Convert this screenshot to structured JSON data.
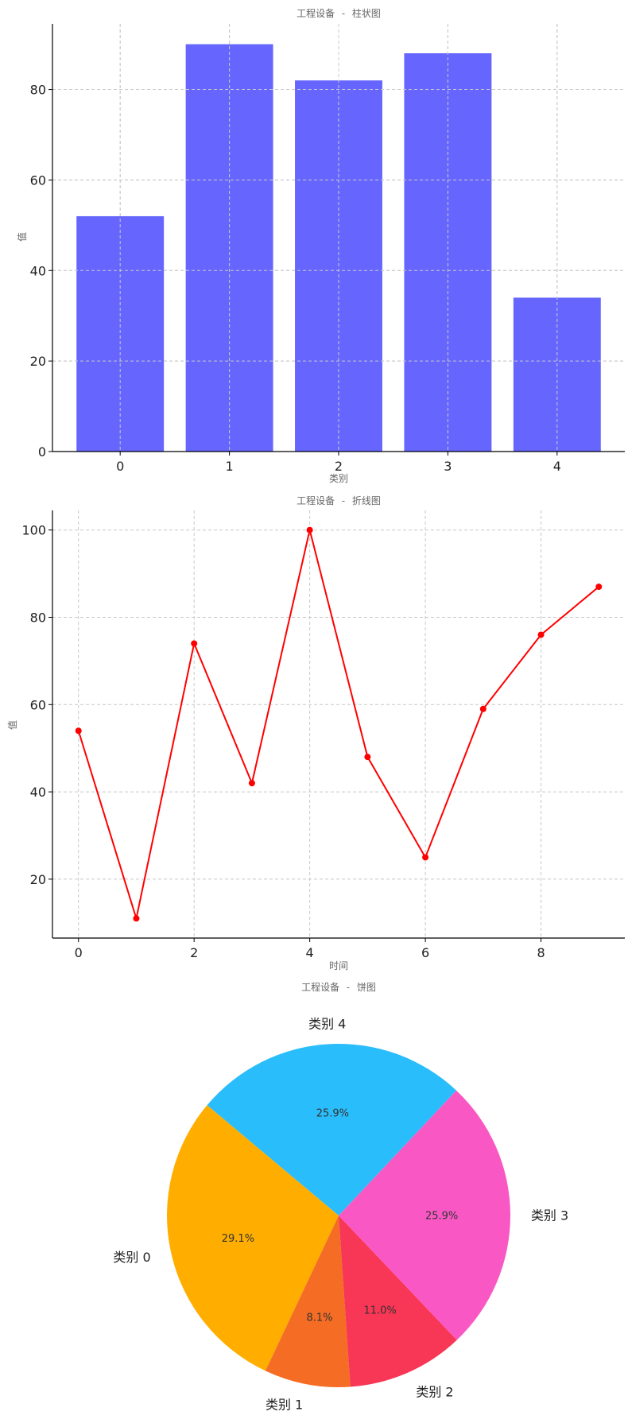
{
  "chart_data": [
    {
      "type": "bar",
      "title": "工程设备 - 柱状图",
      "xlabel": "类别",
      "ylabel": "值",
      "categories": [
        "0",
        "1",
        "2",
        "3",
        "4"
      ],
      "values": [
        52,
        90,
        82,
        88,
        34
      ],
      "ylim": [
        0,
        94.5
      ],
      "yticks": [
        "0",
        "20",
        "40",
        "60",
        "80"
      ],
      "grid": true,
      "color": "#6666ff"
    },
    {
      "type": "line",
      "title": "工程设备 - 折线图",
      "xlabel": "时间",
      "ylabel": "值",
      "x": [
        0,
        1,
        2,
        3,
        4,
        5,
        6,
        7,
        8,
        9
      ],
      "values": [
        54,
        11,
        74,
        42,
        100,
        48,
        25,
        59,
        76,
        87
      ],
      "xlim": [
        -0.45,
        9.45
      ],
      "ylim": [
        6.5,
        104.5
      ],
      "xticks": [
        "0",
        "2",
        "4",
        "6",
        "8"
      ],
      "yticks": [
        "20",
        "40",
        "60",
        "80",
        "100"
      ],
      "grid": true,
      "color": "#ff0000"
    },
    {
      "type": "pie",
      "title": "工程设备 - 饼图",
      "slices": [
        {
          "label": "类别 0",
          "value": 29.1,
          "pct_label": "29.1%",
          "color": "#ffae00"
        },
        {
          "label": "类别 1",
          "value": 8.1,
          "pct_label": "8.1%",
          "color": "#f56c24"
        },
        {
          "label": "类别 2",
          "value": 11.0,
          "pct_label": "11.0%",
          "color": "#f83655"
        },
        {
          "label": "类别 3",
          "value": 25.9,
          "pct_label": "25.9%",
          "color": "#f958c4"
        },
        {
          "label": "类别 4",
          "value": 25.9,
          "pct_label": "25.9%",
          "color": "#2abdfb"
        }
      ]
    }
  ]
}
